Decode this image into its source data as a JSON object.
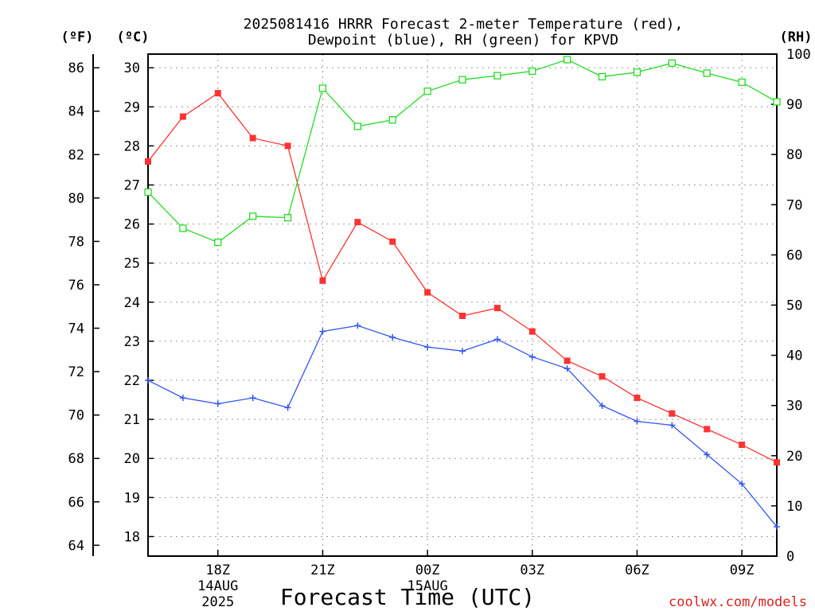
{
  "chart_data": {
    "type": "line",
    "title_lines": [
      "2025081416 HRRR Forecast 2-meter Temperature (red),",
      "Dewpoint (blue), RH (green) for KPVD"
    ],
    "unit_f": "(ºF)",
    "unit_c": "(ºC)",
    "unit_rh": "(RH)",
    "xlabel": "Forecast Time (UTC)",
    "credit": "coolwx.com/models",
    "x_hours": [
      16,
      17,
      18,
      19,
      20,
      21,
      22,
      23,
      24,
      25,
      26,
      27,
      28,
      29,
      30,
      31,
      32,
      33,
      34
    ],
    "x_ticks": [
      {
        "hour": 18,
        "label": "18Z",
        "sub": [
          "14AUG",
          "2025"
        ]
      },
      {
        "hour": 21,
        "label": "21Z",
        "sub": []
      },
      {
        "hour": 24,
        "label": "00Z",
        "sub": [
          "15AUG"
        ]
      },
      {
        "hour": 27,
        "label": "03Z",
        "sub": []
      },
      {
        "hour": 30,
        "label": "06Z",
        "sub": []
      },
      {
        "hour": 33,
        "label": "09Z",
        "sub": []
      }
    ],
    "celsius_range": [
      17.5,
      30.35
    ],
    "celsius_ticks": [
      18,
      19,
      20,
      21,
      22,
      23,
      24,
      25,
      26,
      27,
      28,
      29,
      30
    ],
    "fahrenheit_ticks": [
      64,
      66,
      68,
      70,
      72,
      74,
      76,
      78,
      80,
      82,
      84,
      86
    ],
    "rh_range": [
      0,
      100
    ],
    "rh_ticks": [
      0,
      10,
      20,
      30,
      40,
      50,
      60,
      70,
      80,
      90,
      100
    ],
    "grid": true,
    "series": [
      {
        "name": "Temperature",
        "axis": "celsius",
        "color": "#ff3333",
        "marker": "filled-square",
        "values": [
          27.6,
          28.75,
          29.35,
          28.2,
          28.0,
          24.55,
          26.05,
          25.55,
          24.25,
          23.65,
          23.85,
          23.25,
          22.5,
          22.1,
          21.55,
          21.15,
          20.75,
          20.35,
          19.9
        ]
      },
      {
        "name": "Dewpoint",
        "axis": "celsius",
        "color": "#3355ee",
        "marker": "plus",
        "values": [
          22.0,
          21.55,
          21.4,
          21.55,
          21.3,
          23.25,
          23.4,
          23.1,
          22.85,
          22.75,
          23.05,
          22.6,
          22.3,
          21.35,
          20.95,
          20.85,
          20.1,
          19.35,
          18.25
        ]
      },
      {
        "name": "RH",
        "axis": "rh",
        "color": "#22dd22",
        "marker": "open-square",
        "values": [
          72.5,
          65.3,
          62.5,
          67.7,
          67.4,
          93.2,
          85.6,
          86.9,
          92.6,
          94.9,
          95.7,
          96.6,
          98.9,
          95.5,
          96.4,
          98.2,
          96.2,
          94.4,
          90.5
        ]
      }
    ]
  }
}
